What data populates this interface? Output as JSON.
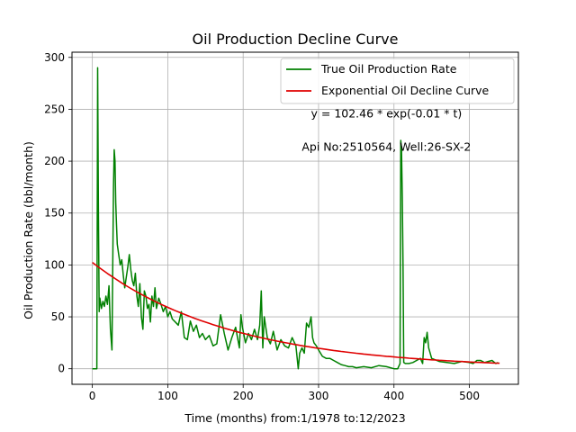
{
  "chart_data": {
    "type": "line",
    "title": "Oil Production Decline Curve",
    "xlabel": "Time (months) from:1/1978 to:12/2023",
    "ylabel": "Oil Production Rate (bbl/month)",
    "xlim": [
      -27,
      565
    ],
    "ylim": [
      -15,
      305
    ],
    "xticks": [
      0,
      100,
      200,
      300,
      400,
      500
    ],
    "yticks": [
      0,
      50,
      100,
      150,
      200,
      250,
      300
    ],
    "grid": true,
    "legend_position": "top-right",
    "annotations": [
      {
        "text": "y = 102.46 * exp(-0.01 * t)",
        "x": 390,
        "y": 242
      },
      {
        "text": "Api No:2510564, Well:26-SX-2",
        "x": 390,
        "y": 210
      }
    ],
    "series": [
      {
        "name": "True Oil Production Rate",
        "color": "#008000",
        "x": [
          0,
          6,
          7,
          8,
          9,
          10,
          12,
          14,
          16,
          18,
          20,
          22,
          24,
          26,
          28,
          29,
          30,
          31,
          32,
          33,
          35,
          37,
          39,
          41,
          43,
          45,
          47,
          49,
          51,
          53,
          55,
          57,
          59,
          61,
          63,
          65,
          67,
          69,
          71,
          73,
          75,
          77,
          79,
          81,
          83,
          85,
          88,
          91,
          94,
          97,
          100,
          103,
          106,
          110,
          114,
          118,
          122,
          126,
          130,
          134,
          138,
          142,
          146,
          150,
          155,
          160,
          165,
          170,
          175,
          180,
          185,
          190,
          195,
          197,
          199,
          203,
          207,
          211,
          215,
          219,
          222,
          224,
          226,
          228,
          232,
          236,
          240,
          245,
          250,
          255,
          260,
          265,
          270,
          273,
          275,
          278,
          281,
          284,
          287,
          290,
          292,
          294,
          297,
          300,
          305,
          310,
          315,
          320,
          325,
          330,
          335,
          340,
          345,
          350,
          360,
          370,
          380,
          390,
          400,
          405,
          408,
          409,
          410,
          411,
          412,
          413,
          415,
          417,
          420,
          425,
          430,
          435,
          438,
          440,
          442,
          444,
          446,
          448,
          450,
          460,
          470,
          480,
          490,
          500,
          505,
          510,
          515,
          520,
          525,
          530,
          535,
          538
        ],
        "y": [
          0,
          0,
          290,
          160,
          55,
          68,
          58,
          65,
          60,
          70,
          62,
          80,
          38,
          18,
          175,
          211,
          200,
          160,
          140,
          120,
          110,
          100,
          105,
          90,
          78,
          88,
          98,
          110,
          95,
          85,
          80,
          92,
          70,
          60,
          82,
          50,
          38,
          75,
          70,
          58,
          62,
          45,
          70,
          60,
          78,
          58,
          68,
          62,
          55,
          60,
          50,
          55,
          48,
          45,
          42,
          55,
          30,
          28,
          46,
          36,
          42,
          30,
          34,
          28,
          32,
          22,
          24,
          52,
          34,
          18,
          30,
          40,
          20,
          52,
          40,
          25,
          34,
          28,
          38,
          28,
          42,
          75,
          20,
          50,
          30,
          24,
          36,
          18,
          28,
          22,
          20,
          30,
          22,
          0,
          15,
          20,
          15,
          44,
          40,
          50,
          30,
          25,
          22,
          18,
          12,
          10,
          10,
          8,
          6,
          4,
          3,
          2,
          2,
          1,
          2,
          1,
          3,
          2,
          0,
          0,
          5,
          220,
          212,
          165,
          100,
          6,
          5,
          5,
          5,
          6,
          8,
          10,
          5,
          30,
          25,
          35,
          20,
          15,
          10,
          7,
          6,
          5,
          7,
          6,
          5,
          8,
          8,
          6,
          7,
          8,
          5,
          6
        ]
      },
      {
        "name": "Exponential Oil Decline Curve",
        "color": "#e00000",
        "fit": {
          "a": 102.46,
          "k": 0.0055,
          "t0": 0,
          "t1": 540
        }
      }
    ]
  }
}
